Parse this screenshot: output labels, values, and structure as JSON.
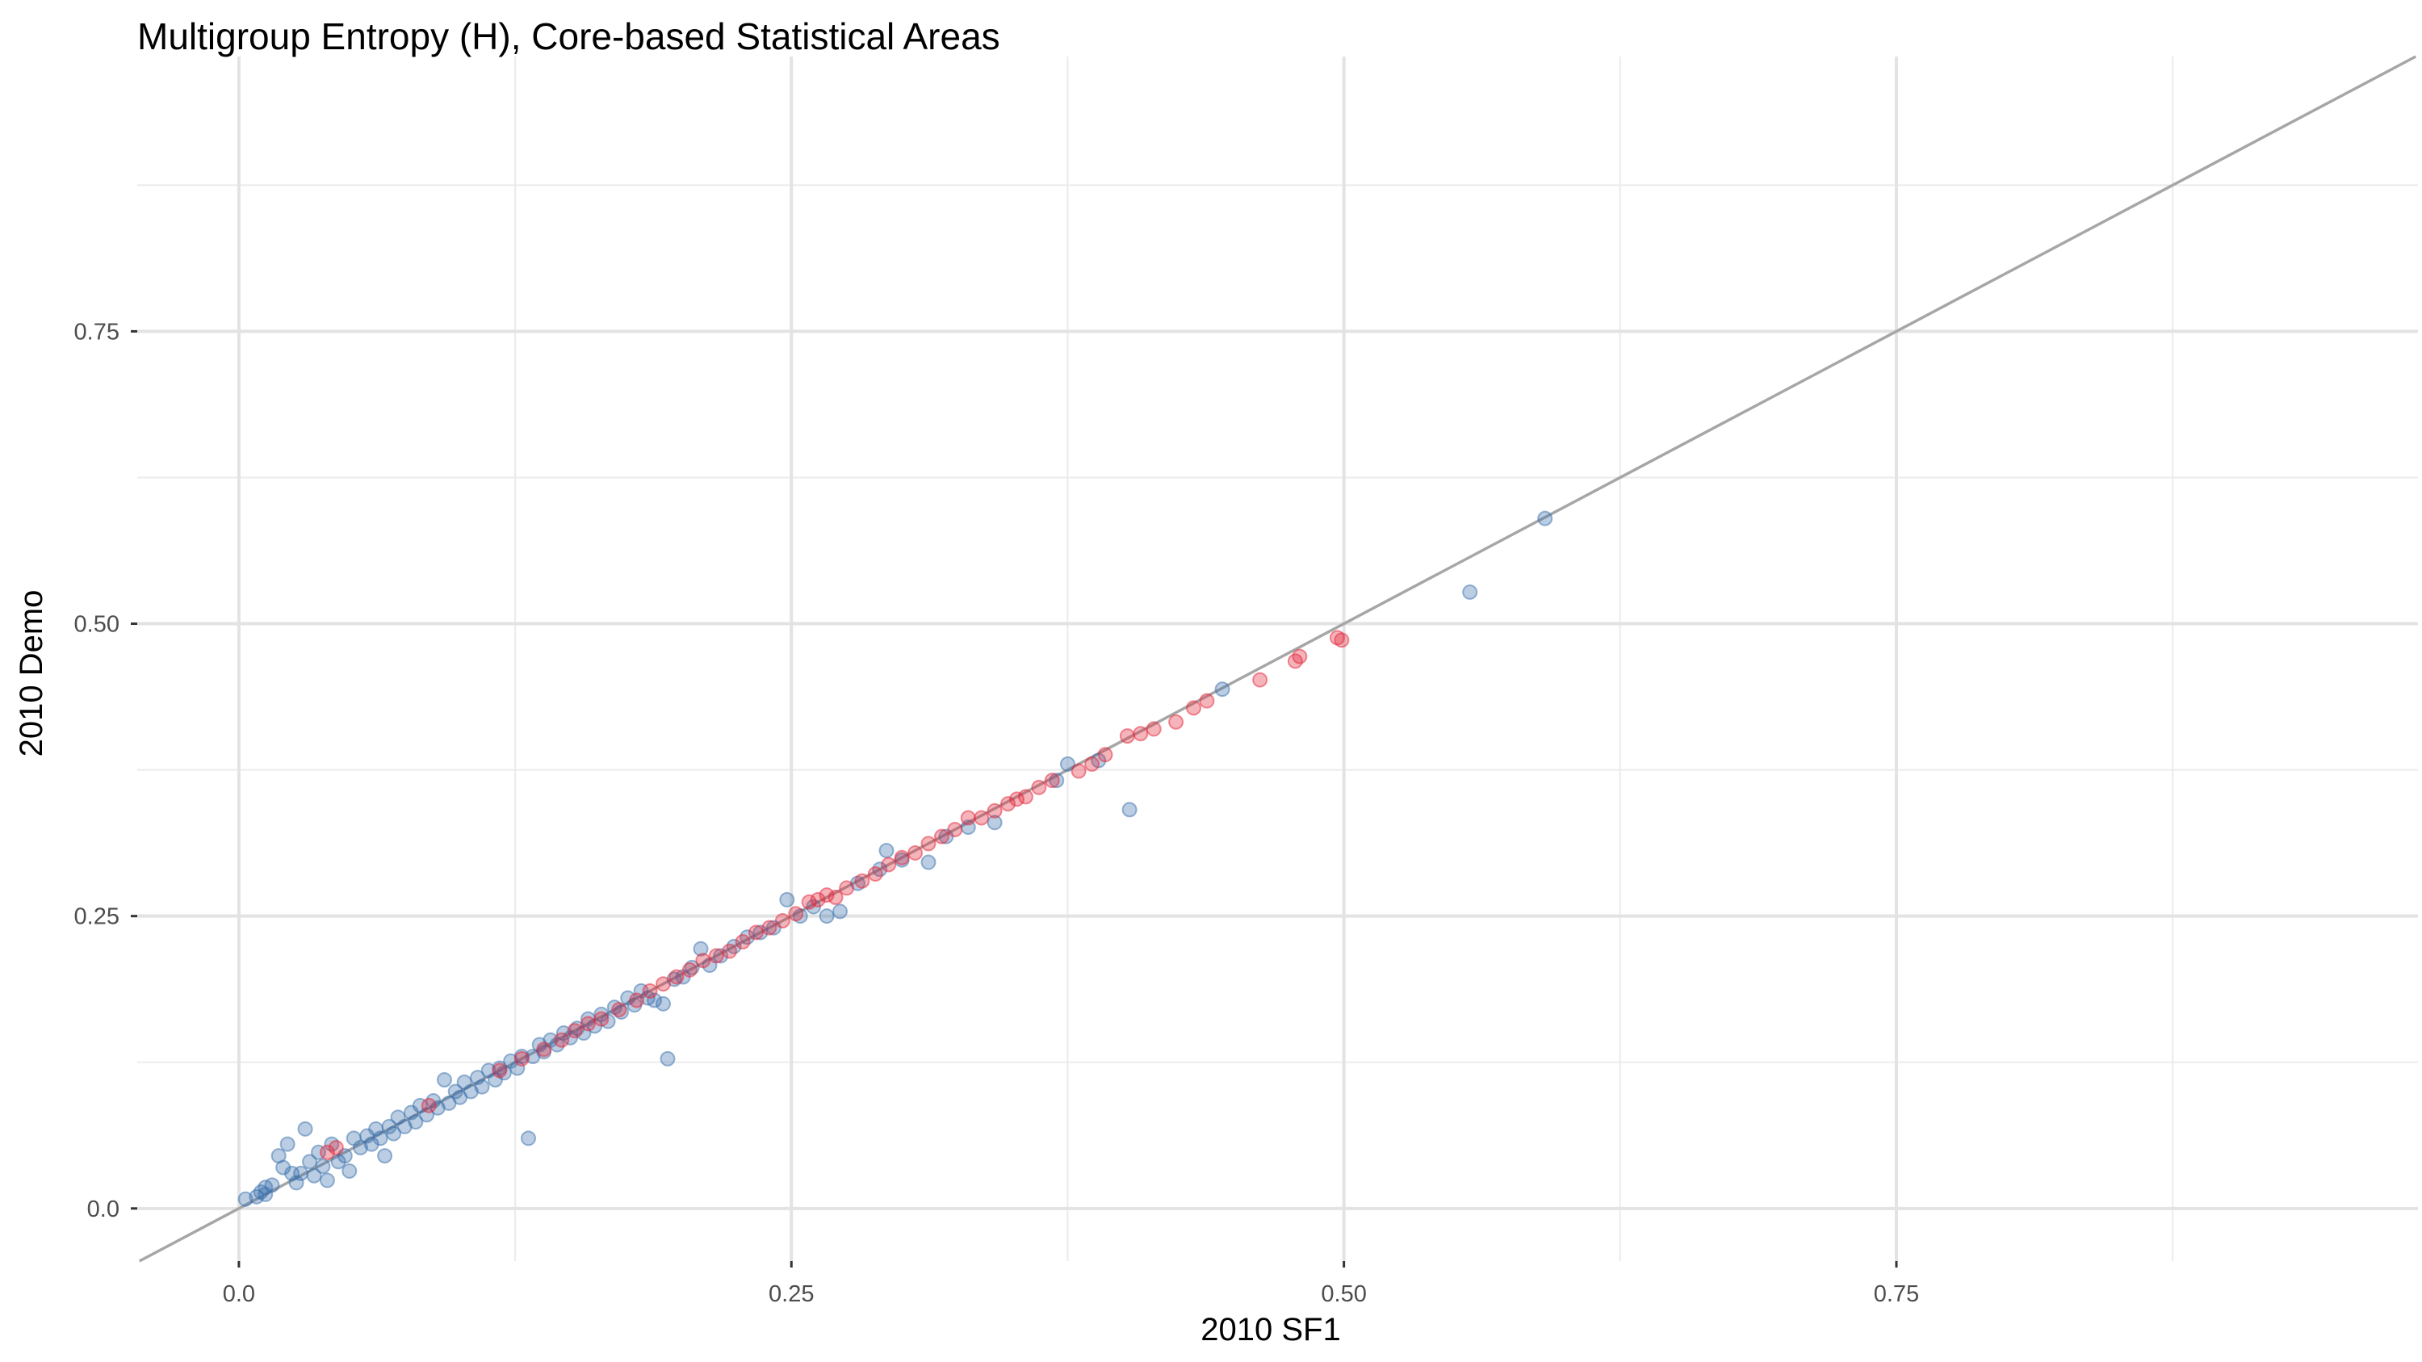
{
  "chart_data": {
    "type": "scatter",
    "title": "Multigroup Entropy (H), Core-based Statistical Areas",
    "xlabel": "2010 SF1",
    "ylabel": "2010 Demo",
    "xlim": [
      -0.046,
      0.986
    ],
    "ylim": [
      -0.045,
      0.985
    ],
    "x_ticks": [
      0.0,
      0.25,
      0.5,
      0.75
    ],
    "x_tick_labels": [
      "0.0",
      "0.25",
      "0.50",
      "0.75"
    ],
    "y_ticks": [
      0.0,
      0.25,
      0.5,
      0.75
    ],
    "y_tick_labels": [
      "0.0",
      "0.25",
      "0.50",
      "0.75"
    ],
    "grid": true,
    "reference_line": {
      "type": "identity",
      "slope": 1,
      "intercept": 0,
      "color": "#a6a6a6"
    },
    "series": [
      {
        "color": "#3a6fac",
        "opacity": 0.35,
        "points": [
          [
            0.003,
            0.008
          ],
          [
            0.008,
            0.01
          ],
          [
            0.01,
            0.014
          ],
          [
            0.012,
            0.018
          ],
          [
            0.015,
            0.02
          ],
          [
            0.012,
            0.012
          ],
          [
            0.018,
            0.045
          ],
          [
            0.02,
            0.035
          ],
          [
            0.022,
            0.055
          ],
          [
            0.024,
            0.03
          ],
          [
            0.026,
            0.022
          ],
          [
            0.028,
            0.03
          ],
          [
            0.03,
            0.068
          ],
          [
            0.032,
            0.04
          ],
          [
            0.034,
            0.028
          ],
          [
            0.036,
            0.048
          ],
          [
            0.038,
            0.036
          ],
          [
            0.04,
            0.024
          ],
          [
            0.042,
            0.055
          ],
          [
            0.045,
            0.04
          ],
          [
            0.048,
            0.045
          ],
          [
            0.05,
            0.032
          ],
          [
            0.052,
            0.06
          ],
          [
            0.055,
            0.052
          ],
          [
            0.058,
            0.062
          ],
          [
            0.06,
            0.055
          ],
          [
            0.062,
            0.068
          ],
          [
            0.064,
            0.06
          ],
          [
            0.066,
            0.045
          ],
          [
            0.068,
            0.07
          ],
          [
            0.07,
            0.064
          ],
          [
            0.072,
            0.078
          ],
          [
            0.075,
            0.07
          ],
          [
            0.078,
            0.082
          ],
          [
            0.08,
            0.074
          ],
          [
            0.082,
            0.088
          ],
          [
            0.085,
            0.08
          ],
          [
            0.088,
            0.092
          ],
          [
            0.09,
            0.086
          ],
          [
            0.093,
            0.11
          ],
          [
            0.095,
            0.09
          ],
          [
            0.098,
            0.1
          ],
          [
            0.1,
            0.095
          ],
          [
            0.102,
            0.108
          ],
          [
            0.105,
            0.1
          ],
          [
            0.108,
            0.112
          ],
          [
            0.11,
            0.104
          ],
          [
            0.113,
            0.118
          ],
          [
            0.116,
            0.11
          ],
          [
            0.118,
            0.12
          ],
          [
            0.12,
            0.116
          ],
          [
            0.123,
            0.126
          ],
          [
            0.126,
            0.12
          ],
          [
            0.128,
            0.13
          ],
          [
            0.131,
            0.06
          ],
          [
            0.133,
            0.13
          ],
          [
            0.136,
            0.14
          ],
          [
            0.138,
            0.134
          ],
          [
            0.141,
            0.144
          ],
          [
            0.144,
            0.14
          ],
          [
            0.147,
            0.15
          ],
          [
            0.15,
            0.146
          ],
          [
            0.153,
            0.154
          ],
          [
            0.156,
            0.15
          ],
          [
            0.158,
            0.162
          ],
          [
            0.161,
            0.156
          ],
          [
            0.164,
            0.166
          ],
          [
            0.167,
            0.16
          ],
          [
            0.17,
            0.172
          ],
          [
            0.173,
            0.168
          ],
          [
            0.176,
            0.18
          ],
          [
            0.179,
            0.174
          ],
          [
            0.182,
            0.186
          ],
          [
            0.185,
            0.18
          ],
          [
            0.188,
            0.178
          ],
          [
            0.192,
            0.175
          ],
          [
            0.194,
            0.128
          ],
          [
            0.197,
            0.196
          ],
          [
            0.201,
            0.198
          ],
          [
            0.205,
            0.206
          ],
          [
            0.209,
            0.222
          ],
          [
            0.213,
            0.208
          ],
          [
            0.218,
            0.216
          ],
          [
            0.224,
            0.224
          ],
          [
            0.23,
            0.232
          ],
          [
            0.236,
            0.236
          ],
          [
            0.242,
            0.24
          ],
          [
            0.248,
            0.264
          ],
          [
            0.254,
            0.25
          ],
          [
            0.26,
            0.258
          ],
          [
            0.266,
            0.25
          ],
          [
            0.272,
            0.254
          ],
          [
            0.28,
            0.278
          ],
          [
            0.29,
            0.29
          ],
          [
            0.293,
            0.306
          ],
          [
            0.3,
            0.298
          ],
          [
            0.312,
            0.296
          ],
          [
            0.32,
            0.318
          ],
          [
            0.33,
            0.326
          ],
          [
            0.342,
            0.33
          ],
          [
            0.37,
            0.366
          ],
          [
            0.375,
            0.38
          ],
          [
            0.389,
            0.383
          ],
          [
            0.403,
            0.341
          ],
          [
            0.445,
            0.444
          ],
          [
            0.557,
            0.527
          ],
          [
            0.591,
            0.59
          ]
        ]
      },
      {
        "color": "#e3263a",
        "opacity": 0.35,
        "points": [
          [
            0.04,
            0.048
          ],
          [
            0.044,
            0.052
          ],
          [
            0.086,
            0.088
          ],
          [
            0.118,
            0.118
          ],
          [
            0.128,
            0.128
          ],
          [
            0.138,
            0.136
          ],
          [
            0.146,
            0.144
          ],
          [
            0.152,
            0.152
          ],
          [
            0.158,
            0.158
          ],
          [
            0.164,
            0.162
          ],
          [
            0.172,
            0.17
          ],
          [
            0.18,
            0.178
          ],
          [
            0.186,
            0.186
          ],
          [
            0.192,
            0.192
          ],
          [
            0.198,
            0.198
          ],
          [
            0.204,
            0.204
          ],
          [
            0.21,
            0.212
          ],
          [
            0.216,
            0.216
          ],
          [
            0.222,
            0.22
          ],
          [
            0.228,
            0.228
          ],
          [
            0.234,
            0.236
          ],
          [
            0.24,
            0.24
          ],
          [
            0.246,
            0.246
          ],
          [
            0.252,
            0.252
          ],
          [
            0.258,
            0.262
          ],
          [
            0.262,
            0.264
          ],
          [
            0.266,
            0.268
          ],
          [
            0.27,
            0.266
          ],
          [
            0.275,
            0.274
          ],
          [
            0.282,
            0.28
          ],
          [
            0.288,
            0.286
          ],
          [
            0.294,
            0.294
          ],
          [
            0.3,
            0.3
          ],
          [
            0.306,
            0.304
          ],
          [
            0.312,
            0.312
          ],
          [
            0.318,
            0.318
          ],
          [
            0.324,
            0.324
          ],
          [
            0.33,
            0.334
          ],
          [
            0.336,
            0.334
          ],
          [
            0.342,
            0.34
          ],
          [
            0.348,
            0.346
          ],
          [
            0.352,
            0.35
          ],
          [
            0.356,
            0.352
          ],
          [
            0.362,
            0.36
          ],
          [
            0.368,
            0.366
          ],
          [
            0.38,
            0.374
          ],
          [
            0.386,
            0.38
          ],
          [
            0.392,
            0.388
          ],
          [
            0.402,
            0.404
          ],
          [
            0.408,
            0.406
          ],
          [
            0.414,
            0.41
          ],
          [
            0.424,
            0.416
          ],
          [
            0.432,
            0.428
          ],
          [
            0.438,
            0.434
          ],
          [
            0.462,
            0.452
          ],
          [
            0.478,
            0.468
          ],
          [
            0.48,
            0.472
          ],
          [
            0.497,
            0.488
          ],
          [
            0.499,
            0.486
          ]
        ]
      }
    ]
  }
}
